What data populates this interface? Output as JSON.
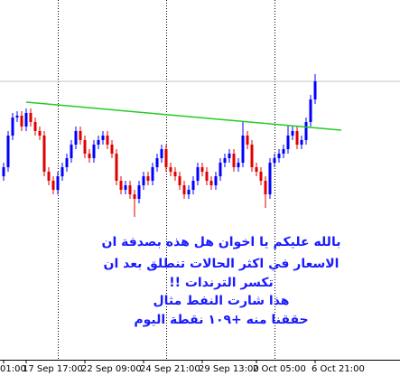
{
  "chart_data": {
    "type": "candlestick",
    "ylim": [
      0,
      400
    ],
    "up_color": "#0000ff",
    "down_color": "#e00000",
    "candles": [
      [
        205,
        220,
        200,
        215
      ],
      [
        215,
        255,
        210,
        250
      ],
      [
        250,
        275,
        245,
        270
      ],
      [
        270,
        277,
        265,
        272
      ],
      [
        272,
        277,
        255,
        260
      ],
      [
        260,
        280,
        255,
        275
      ],
      [
        275,
        280,
        260,
        265
      ],
      [
        265,
        270,
        250,
        255
      ],
      [
        255,
        260,
        245,
        250
      ],
      [
        250,
        255,
        205,
        210
      ],
      [
        210,
        215,
        195,
        200
      ],
      [
        200,
        205,
        185,
        190
      ],
      [
        190,
        210,
        185,
        205
      ],
      [
        205,
        220,
        200,
        215
      ],
      [
        215,
        230,
        210,
        225
      ],
      [
        225,
        245,
        220,
        240
      ],
      [
        240,
        260,
        235,
        255
      ],
      [
        255,
        260,
        240,
        245
      ],
      [
        245,
        250,
        225,
        230
      ],
      [
        230,
        235,
        220,
        225
      ],
      [
        225,
        245,
        220,
        240
      ],
      [
        240,
        250,
        235,
        245
      ],
      [
        245,
        255,
        240,
        250
      ],
      [
        250,
        255,
        235,
        240
      ],
      [
        240,
        245,
        225,
        230
      ],
      [
        230,
        235,
        195,
        200
      ],
      [
        200,
        205,
        185,
        190
      ],
      [
        190,
        200,
        185,
        195
      ],
      [
        195,
        200,
        180,
        185
      ],
      [
        185,
        190,
        160,
        180
      ],
      [
        180,
        200,
        175,
        195
      ],
      [
        195,
        210,
        190,
        205
      ],
      [
        205,
        210,
        195,
        200
      ],
      [
        200,
        220,
        195,
        215
      ],
      [
        215,
        230,
        210,
        225
      ],
      [
        225,
        240,
        220,
        235
      ],
      [
        235,
        240,
        210,
        215
      ],
      [
        215,
        220,
        205,
        210
      ],
      [
        210,
        215,
        200,
        205
      ],
      [
        205,
        210,
        190,
        195
      ],
      [
        195,
        200,
        180,
        185
      ],
      [
        185,
        195,
        180,
        190
      ],
      [
        190,
        205,
        185,
        200
      ],
      [
        200,
        220,
        195,
        215
      ],
      [
        215,
        220,
        205,
        210
      ],
      [
        210,
        215,
        195,
        200
      ],
      [
        200,
        205,
        190,
        195
      ],
      [
        195,
        210,
        190,
        205
      ],
      [
        205,
        225,
        200,
        220
      ],
      [
        220,
        230,
        215,
        225
      ],
      [
        225,
        235,
        220,
        230
      ],
      [
        230,
        235,
        210,
        215
      ],
      [
        215,
        225,
        210,
        220
      ],
      [
        220,
        265,
        215,
        250
      ],
      [
        250,
        255,
        235,
        240
      ],
      [
        240,
        245,
        210,
        215
      ],
      [
        215,
        220,
        205,
        210
      ],
      [
        210,
        215,
        195,
        200
      ],
      [
        200,
        205,
        170,
        185
      ],
      [
        185,
        225,
        180,
        220
      ],
      [
        220,
        230,
        215,
        225
      ],
      [
        225,
        235,
        220,
        230
      ],
      [
        230,
        240,
        225,
        235
      ],
      [
        235,
        262,
        230,
        250
      ],
      [
        250,
        260,
        245,
        255
      ],
      [
        255,
        260,
        235,
        240
      ],
      [
        240,
        250,
        235,
        245
      ],
      [
        245,
        270,
        240,
        265
      ],
      [
        265,
        295,
        260,
        290
      ],
      [
        290,
        318,
        285,
        310
      ]
    ],
    "x_labels": [
      {
        "index": 0,
        "label": "01:00"
      },
      {
        "index": 5,
        "label": "17 Sep 17:00"
      },
      {
        "index": 18,
        "label": "22 Sep 09:00"
      },
      {
        "index": 31,
        "label": "24 Sep 21:00"
      },
      {
        "index": 44,
        "label": "29 Sep 13:00"
      },
      {
        "index": 56,
        "label": "2 Oct 05:00"
      },
      {
        "index": 69,
        "label": "6 Oct 21:00"
      }
    ],
    "separators": [
      12,
      36,
      60
    ],
    "price_line": {
      "value": 310,
      "color": "#c0c0c0"
    },
    "trendline": {
      "color": "#22cc22",
      "start": [
        5,
        287
      ],
      "end": [
        74.8,
        256
      ]
    },
    "annotations": [
      "بالله عليكم يا اخوان هل هذه بصدفة ان",
      "الاسعار في اكثر الحالات تنطلق بعد ان",
      "تكسر الترندات !!",
      "هذا شارت النفط مثال",
      "حققنا منه +١٠٩ نقطة اليوم"
    ]
  }
}
